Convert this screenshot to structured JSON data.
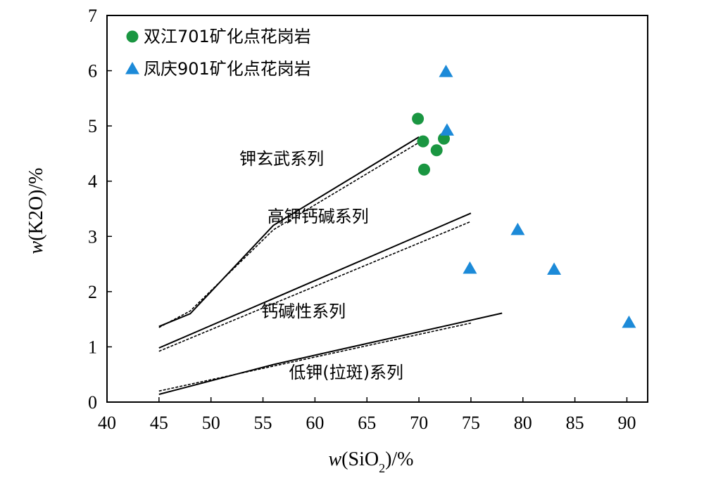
{
  "chart_data": {
    "type": "scatter",
    "xlabel": "w(SiO2)/%",
    "ylabel": "w(K2O)/%",
    "xlim": [
      40,
      92
    ],
    "ylim": [
      0,
      7
    ],
    "x_ticks": [
      40,
      45,
      50,
      55,
      60,
      65,
      70,
      75,
      80,
      85,
      90
    ],
    "y_ticks": [
      0,
      1,
      2,
      3,
      4,
      5,
      6,
      7
    ],
    "grid": false,
    "legend": "top-left",
    "series": [
      {
        "name": "双江701矿化点花岗岩",
        "marker": "circle",
        "color": "#1a9641",
        "points": [
          [
            69.9,
            5.13
          ],
          [
            70.4,
            4.72
          ],
          [
            71.7,
            4.56
          ],
          [
            72.4,
            4.77
          ],
          [
            70.5,
            4.21
          ]
        ]
      },
      {
        "name": "凤庆901矿化点花岗岩",
        "marker": "triangle",
        "color": "#1c8ad8",
        "points": [
          [
            72.6,
            5.98
          ],
          [
            72.7,
            4.92
          ],
          [
            74.9,
            2.42
          ],
          [
            79.5,
            3.12
          ],
          [
            83.0,
            2.4
          ],
          [
            90.2,
            1.44
          ]
        ]
      }
    ],
    "boundary_lines": [
      {
        "style": "solid",
        "points": [
          [
            45,
            1.37
          ],
          [
            48,
            1.6
          ],
          [
            56,
            3.2
          ],
          [
            70,
            4.8
          ]
        ]
      },
      {
        "style": "dashed",
        "points": [
          [
            45,
            1.35
          ],
          [
            48,
            1.65
          ],
          [
            56,
            3.12
          ],
          [
            70,
            4.7
          ]
        ]
      },
      {
        "style": "solid",
        "points": [
          [
            45,
            0.98
          ],
          [
            75,
            3.42
          ]
        ]
      },
      {
        "style": "dashed",
        "points": [
          [
            45,
            0.92
          ],
          [
            75,
            3.27
          ]
        ]
      },
      {
        "style": "solid",
        "points": [
          [
            45,
            0.14
          ],
          [
            56,
            0.68
          ],
          [
            78,
            1.61
          ]
        ]
      },
      {
        "style": "dashed",
        "points": [
          [
            45,
            0.2
          ],
          [
            75,
            1.43
          ]
        ]
      }
    ],
    "region_labels": [
      {
        "text": "钾玄武系列",
        "x": 56.8,
        "y": 4.3
      },
      {
        "text": "高钾钙碱系列",
        "x": 60.3,
        "y": 3.26
      },
      {
        "text": "钙碱性系列",
        "x": 58.9,
        "y": 1.54
      },
      {
        "text": "低钾(拉斑)系列",
        "x": 63.0,
        "y": 0.43
      }
    ]
  }
}
